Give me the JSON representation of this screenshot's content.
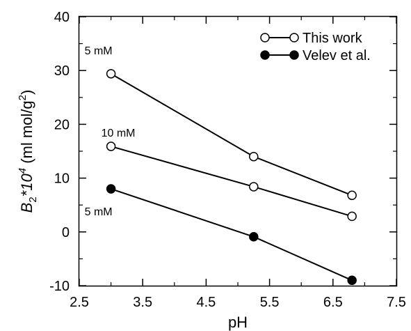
{
  "chart_data": {
    "type": "line",
    "xlabel": "pH",
    "ylabel": {
      "base": "B",
      "sub": "2",
      "mid": "*10",
      "sup": "4",
      "unit_open": " (ml mol/g",
      "unit_sup": "2",
      "unit_close": ")"
    },
    "xlim": [
      2.5,
      7.5
    ],
    "ylim": [
      -10,
      40
    ],
    "xticks": [
      2.5,
      3.5,
      4.5,
      5.5,
      6.5,
      7.5
    ],
    "xtick_labels": [
      "2.5",
      "3.5",
      "4.5",
      "5.5",
      "6.5",
      "7.5"
    ],
    "yticks": [
      -10,
      0,
      10,
      20,
      30,
      40
    ],
    "ytick_labels": [
      "-10",
      "0",
      "10",
      "20",
      "30",
      "40"
    ],
    "x_minor_step": 0.5,
    "y_minor_step": 5,
    "grid": false,
    "legend_position": "top-right",
    "series": [
      {
        "legend_group": "This work",
        "marker": "open",
        "label": "5 mM",
        "x": [
          3.0,
          5.25,
          6.8
        ],
        "y": [
          29.4,
          14.0,
          6.8
        ]
      },
      {
        "legend_group": "This work",
        "marker": "open",
        "label": "10 mM",
        "x": [
          3.0,
          5.25,
          6.8
        ],
        "y": [
          15.9,
          8.4,
          2.9
        ]
      },
      {
        "legend_group": "Velev et al.",
        "marker": "filled",
        "label": "5 mM",
        "x": [
          3.0,
          5.25,
          6.8
        ],
        "y": [
          8.0,
          -0.9,
          -9.0
        ]
      }
    ],
    "legend": [
      {
        "label": "This work",
        "marker": "open"
      },
      {
        "label": "Velev et al.",
        "marker": "filled"
      }
    ],
    "colors": {
      "line": "#000000",
      "open_fill": "#ffffff",
      "filled_fill": "#000000"
    }
  }
}
